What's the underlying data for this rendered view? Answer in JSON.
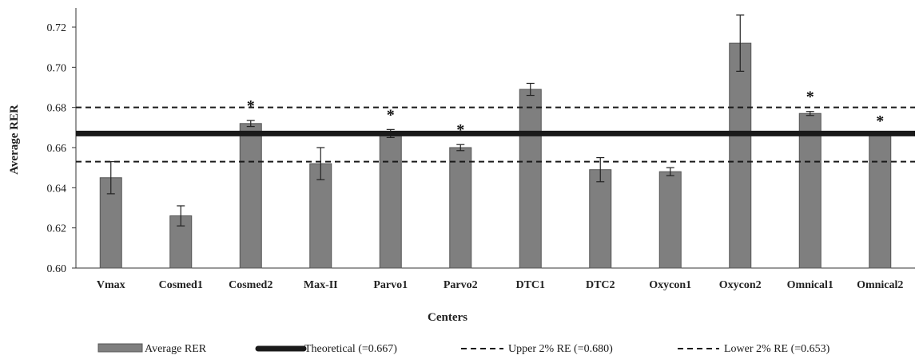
{
  "chart_data": {
    "type": "bar",
    "title": "",
    "xlabel": "Centers",
    "ylabel": "Average RER",
    "ylim": [
      0.6,
      0.73
    ],
    "yticks": [
      "0.60",
      "0.62",
      "0.64",
      "0.66",
      "0.68",
      "0.70",
      "0.72"
    ],
    "ytick_values": [
      0.6,
      0.62,
      0.64,
      0.66,
      0.68,
      0.7,
      0.72
    ],
    "grid": false,
    "legend_position": "bottom",
    "categories": [
      "Vmax",
      "Cosmed1",
      "Cosmed2",
      "Max-II",
      "Parvo1",
      "Parvo2",
      "DTC1",
      "DTC2",
      "Oxycon1",
      "Oxycon2",
      "Omnical1",
      "Omnical2"
    ],
    "series": [
      {
        "name": "Average RER",
        "color": "#7f7f7f",
        "values": [
          0.645,
          0.626,
          0.672,
          0.652,
          0.667,
          0.66,
          0.689,
          0.649,
          0.648,
          0.712,
          0.677,
          0.666
        ],
        "error": [
          0.008,
          0.005,
          0.0015,
          0.008,
          0.002,
          0.0015,
          0.003,
          0.006,
          0.002,
          0.014,
          0.001,
          0.0
        ]
      }
    ],
    "significant": [
      false,
      false,
      true,
      false,
      true,
      true,
      false,
      false,
      false,
      false,
      true,
      true
    ],
    "annotation_symbol": "*",
    "reference_lines": [
      {
        "name": "Theoretical (=0.667)",
        "value": 0.667,
        "style": "solid-thick",
        "color": "#1a1a1a"
      },
      {
        "name": "Upper 2% RE (=0.680)",
        "value": 0.68,
        "style": "dashed",
        "color": "#1a1a1a"
      },
      {
        "name": "Lower 2% RE (=0.653)",
        "value": 0.653,
        "style": "dashed",
        "color": "#1a1a1a"
      }
    ]
  }
}
